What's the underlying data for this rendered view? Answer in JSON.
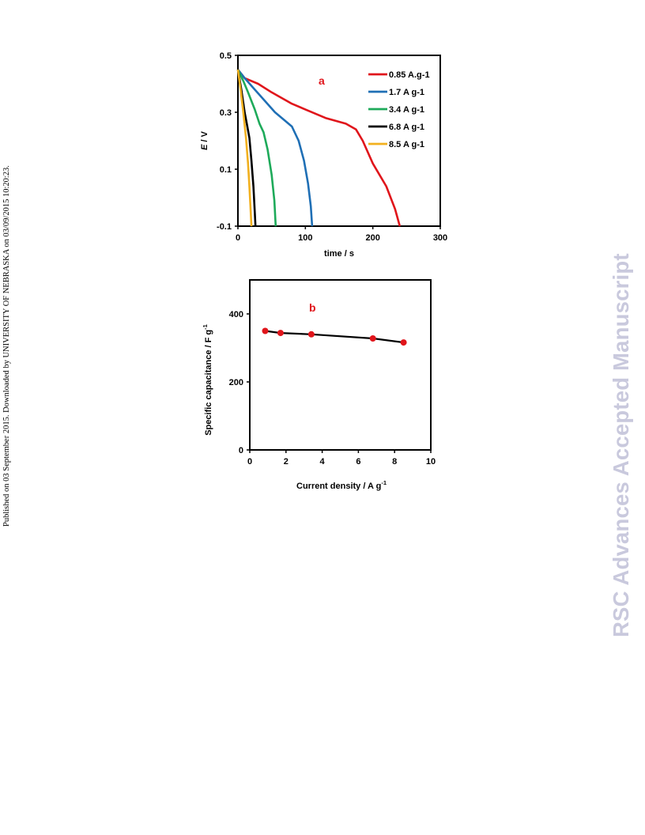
{
  "side_note": "Published on 03 September 2015. Downloaded by UNIVERSITY OF NEBRASKA on 03/09/2015 10:20:23.",
  "watermark": "RSC Advances Accepted Manuscript",
  "chart_data": [
    {
      "type": "line",
      "panel_label": "a",
      "xlabel": "time / s",
      "ylabel_italic": "E",
      "ylabel_rest": " / V",
      "xlim": [
        0,
        300
      ],
      "ylim": [
        -0.1,
        0.5
      ],
      "xticks": [
        0,
        100,
        200,
        300
      ],
      "yticks": [
        -0.1,
        0.1,
        0.3,
        0.5
      ],
      "ytick_labels": [
        "-0.1",
        "0.1",
        "0.3",
        "0.5"
      ],
      "legend_position": "top-right",
      "series": [
        {
          "name": "0.85 A.g-1",
          "color": "#e0151b",
          "x": [
            0,
            10,
            30,
            50,
            65,
            80,
            100,
            130,
            160,
            175,
            185,
            200,
            220,
            233,
            240
          ],
          "y": [
            0.45,
            0.42,
            0.4,
            0.37,
            0.35,
            0.33,
            0.31,
            0.28,
            0.26,
            0.24,
            0.2,
            0.12,
            0.04,
            -0.04,
            -0.1
          ]
        },
        {
          "name": "1.7 A g-1",
          "color": "#1f6fb5",
          "x": [
            0,
            10,
            25,
            40,
            55,
            70,
            80,
            90,
            98,
            104,
            108,
            110
          ],
          "y": [
            0.45,
            0.42,
            0.38,
            0.34,
            0.3,
            0.27,
            0.25,
            0.2,
            0.13,
            0.05,
            -0.03,
            -0.1
          ]
        },
        {
          "name": "3.4 A g-1",
          "color": "#1eaa5a",
          "x": [
            0,
            8,
            15,
            25,
            32,
            38,
            44,
            50,
            54,
            56
          ],
          "y": [
            0.45,
            0.41,
            0.37,
            0.31,
            0.26,
            0.23,
            0.17,
            0.08,
            -0.01,
            -0.1
          ]
        },
        {
          "name": "6.8 A g-1",
          "color": "#000000",
          "x": [
            0,
            5,
            10,
            14,
            17,
            20,
            23,
            25,
            26
          ],
          "y": [
            0.45,
            0.38,
            0.3,
            0.25,
            0.21,
            0.13,
            0.04,
            -0.05,
            -0.1
          ]
        },
        {
          "name": "8.5 A g-1",
          "color": "#f2b01e",
          "x": [
            0,
            4,
            8,
            12,
            15,
            17,
            19,
            20
          ],
          "y": [
            0.45,
            0.38,
            0.3,
            0.21,
            0.12,
            0.04,
            -0.05,
            -0.1
          ]
        }
      ]
    },
    {
      "type": "line",
      "panel_label": "b",
      "xlabel": "Current density  / A g",
      "xlabel_sup": "-1",
      "ylabel": "Specific capacitance  / F g",
      "ylabel_sup": "-1",
      "xlim": [
        0,
        10
      ],
      "ylim": [
        0,
        500
      ],
      "xticks": [
        0,
        2,
        4,
        6,
        8,
        10
      ],
      "yticks": [
        0,
        200,
        400
      ],
      "series": [
        {
          "line_color": "#000000",
          "marker_color": "#e0151b",
          "x": [
            0.85,
            1.7,
            3.4,
            6.8,
            8.5
          ],
          "y": [
            350,
            344,
            340,
            328,
            316
          ]
        }
      ]
    }
  ]
}
